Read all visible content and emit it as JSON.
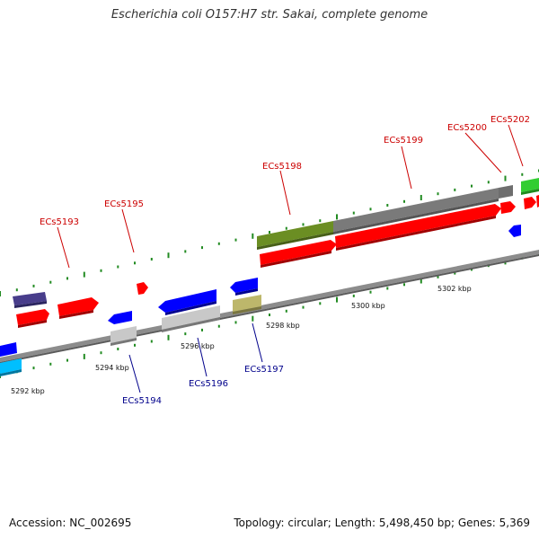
{
  "title": "Escherichia coli O157:H7 str. Sakai, complete genome",
  "footer": {
    "accession": "Accession: NC_002695",
    "summary": "Topology: circular; Length: 5,498,450 bp; Genes: 5,369"
  },
  "colors": {
    "backbone": "#8c8c8c",
    "forward_gene": "#ff0000",
    "reverse_gene": "#0000ff",
    "forward_label": "#cc0000",
    "reverse_label": "#00008b",
    "tick": "#228b22",
    "dark_gray_feature": "#6e6e6e",
    "olive_feature": "#6b8e23",
    "green_feature": "#32cd32",
    "purple_feature": "#483d8b",
    "light_gray_feature": "#c8c8c8",
    "khaki_feature": "#bdb76b",
    "cyan_feature": "#00bfff"
  },
  "scale_labels": [
    "5292 kbp",
    "5294 kbp",
    "5296 kbp",
    "5298 kbp",
    "5300 kbp",
    "5302 kbp"
  ],
  "gene_labels": {
    "top": [
      "ECs5193",
      "ECs5195",
      "ECs5198",
      "ECs5199",
      "ECs5200",
      "ECs5202"
    ],
    "bottom": [
      "ECs5194",
      "ECs5196",
      "ECs5197"
    ]
  }
}
